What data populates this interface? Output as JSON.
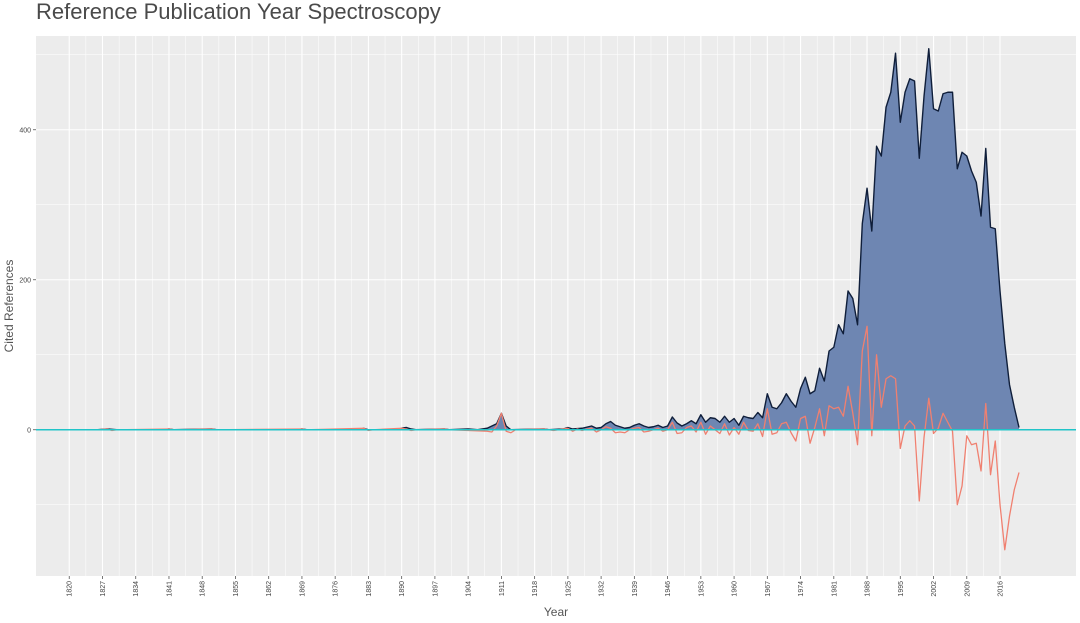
{
  "chart_data": {
    "type": "area",
    "title": "Reference Publication Year Spectroscopy",
    "xlabel": "Year",
    "ylabel": "Cited References",
    "xlim": [
      1813,
      2032
    ],
    "ylim": [
      -195,
      525
    ],
    "x_ticks": [
      1820,
      1827,
      1834,
      1841,
      1848,
      1855,
      1862,
      1869,
      1876,
      1883,
      1890,
      1897,
      1904,
      1911,
      1918,
      1925,
      1932,
      1939,
      1946,
      1953,
      1960,
      1967,
      1974,
      1981,
      1988,
      1995,
      2002,
      2009,
      2016
    ],
    "y_ticks": [
      0,
      200,
      400
    ],
    "grid": true,
    "legend": "none",
    "colors": {
      "area_fill": "#6e86b2",
      "area_line": "#0f1e3a",
      "deviation_line": "#f08070",
      "zero_line": "#20c4c8",
      "panel_bg": "#ececec",
      "grid": "#ffffff"
    },
    "series": [
      {
        "kind": "area",
        "points": [
          [
            1820,
            0
          ],
          [
            1826,
            0
          ],
          [
            1828,
            1
          ],
          [
            1830,
            0
          ],
          [
            1840,
            0
          ],
          [
            1841,
            1
          ],
          [
            1842,
            0
          ],
          [
            1850,
            1
          ],
          [
            1851,
            0
          ],
          [
            1868,
            0
          ],
          [
            1869,
            1
          ],
          [
            1870,
            0
          ],
          [
            1881,
            0
          ],
          [
            1882,
            2
          ],
          [
            1883,
            0
          ],
          [
            1889,
            0
          ],
          [
            1890,
            2
          ],
          [
            1891,
            3
          ],
          [
            1892,
            1
          ],
          [
            1893,
            0
          ],
          [
            1899,
            1
          ],
          [
            1900,
            0
          ],
          [
            1904,
            1
          ],
          [
            1906,
            0
          ],
          [
            1908,
            2
          ],
          [
            1910,
            8
          ],
          [
            1911,
            22
          ],
          [
            1912,
            5
          ],
          [
            1913,
            0
          ],
          [
            1920,
            1
          ],
          [
            1921,
            0
          ],
          [
            1924,
            1
          ],
          [
            1925,
            3
          ],
          [
            1926,
            1
          ],
          [
            1928,
            2
          ],
          [
            1930,
            5
          ],
          [
            1931,
            2
          ],
          [
            1932,
            3
          ],
          [
            1933,
            8
          ],
          [
            1934,
            11
          ],
          [
            1935,
            6
          ],
          [
            1936,
            4
          ],
          [
            1937,
            2
          ],
          [
            1938,
            3
          ],
          [
            1939,
            6
          ],
          [
            1940,
            8
          ],
          [
            1941,
            5
          ],
          [
            1942,
            3
          ],
          [
            1943,
            4
          ],
          [
            1944,
            6
          ],
          [
            1945,
            3
          ],
          [
            1946,
            5
          ],
          [
            1947,
            17
          ],
          [
            1948,
            9
          ],
          [
            1949,
            5
          ],
          [
            1950,
            8
          ],
          [
            1951,
            12
          ],
          [
            1952,
            8
          ],
          [
            1953,
            20
          ],
          [
            1954,
            10
          ],
          [
            1955,
            16
          ],
          [
            1956,
            15
          ],
          [
            1957,
            10
          ],
          [
            1958,
            18
          ],
          [
            1959,
            10
          ],
          [
            1960,
            15
          ],
          [
            1961,
            6
          ],
          [
            1962,
            18
          ],
          [
            1963,
            16
          ],
          [
            1964,
            15
          ],
          [
            1965,
            23
          ],
          [
            1966,
            16
          ],
          [
            1967,
            48
          ],
          [
            1968,
            30
          ],
          [
            1969,
            28
          ],
          [
            1970,
            36
          ],
          [
            1971,
            48
          ],
          [
            1972,
            38
          ],
          [
            1973,
            30
          ],
          [
            1974,
            55
          ],
          [
            1975,
            70
          ],
          [
            1976,
            48
          ],
          [
            1977,
            52
          ],
          [
            1978,
            82
          ],
          [
            1979,
            65
          ],
          [
            1980,
            105
          ],
          [
            1981,
            110
          ],
          [
            1982,
            140
          ],
          [
            1983,
            128
          ],
          [
            1984,
            185
          ],
          [
            1985,
            175
          ],
          [
            1986,
            140
          ],
          [
            1987,
            275
          ],
          [
            1988,
            322
          ],
          [
            1989,
            265
          ],
          [
            1990,
            378
          ],
          [
            1991,
            365
          ],
          [
            1992,
            430
          ],
          [
            1993,
            450
          ],
          [
            1994,
            502
          ],
          [
            1995,
            410
          ],
          [
            1996,
            450
          ],
          [
            1997,
            468
          ],
          [
            1998,
            465
          ],
          [
            1999,
            362
          ],
          [
            2000,
            445
          ],
          [
            2001,
            508
          ],
          [
            2002,
            428
          ],
          [
            2003,
            425
          ],
          [
            2004,
            448
          ],
          [
            2005,
            450
          ],
          [
            2006,
            450
          ],
          [
            2007,
            348
          ],
          [
            2008,
            370
          ],
          [
            2009,
            365
          ],
          [
            2010,
            345
          ],
          [
            2011,
            330
          ],
          [
            2012,
            285
          ],
          [
            2013,
            375
          ],
          [
            2014,
            270
          ],
          [
            2015,
            268
          ],
          [
            2016,
            185
          ],
          [
            2017,
            115
          ],
          [
            2018,
            60
          ],
          [
            2019,
            30
          ],
          [
            2020,
            3
          ]
        ]
      },
      {
        "kind": "line",
        "points": [
          [
            1820,
            0
          ],
          [
            1826,
            0
          ],
          [
            1828,
            1
          ],
          [
            1829,
            -1
          ],
          [
            1830,
            0
          ],
          [
            1841,
            1
          ],
          [
            1842,
            0
          ],
          [
            1850,
            1
          ],
          [
            1851,
            0
          ],
          [
            1869,
            1
          ],
          [
            1870,
            0
          ],
          [
            1882,
            2
          ],
          [
            1883,
            -1
          ],
          [
            1884,
            0
          ],
          [
            1890,
            2
          ],
          [
            1891,
            1
          ],
          [
            1892,
            -1
          ],
          [
            1893,
            0
          ],
          [
            1899,
            1
          ],
          [
            1900,
            0
          ],
          [
            1908,
            -2
          ],
          [
            1909,
            -3
          ],
          [
            1910,
            5
          ],
          [
            1911,
            22
          ],
          [
            1912,
            -2
          ],
          [
            1913,
            -4
          ],
          [
            1914,
            0
          ],
          [
            1920,
            1
          ],
          [
            1922,
            -1
          ],
          [
            1924,
            1
          ],
          [
            1925,
            2
          ],
          [
            1926,
            -2
          ],
          [
            1927,
            1
          ],
          [
            1928,
            -1
          ],
          [
            1929,
            1
          ],
          [
            1930,
            2
          ],
          [
            1931,
            -3
          ],
          [
            1932,
            0
          ],
          [
            1933,
            4
          ],
          [
            1934,
            2
          ],
          [
            1935,
            -4
          ],
          [
            1936,
            -3
          ],
          [
            1937,
            -4
          ],
          [
            1938,
            0
          ],
          [
            1939,
            2
          ],
          [
            1940,
            3
          ],
          [
            1941,
            -3
          ],
          [
            1942,
            -2
          ],
          [
            1943,
            0
          ],
          [
            1944,
            2
          ],
          [
            1945,
            -2
          ],
          [
            1946,
            0
          ],
          [
            1947,
            10
          ],
          [
            1948,
            -5
          ],
          [
            1949,
            -4
          ],
          [
            1950,
            3
          ],
          [
            1951,
            5
          ],
          [
            1952,
            -3
          ],
          [
            1953,
            10
          ],
          [
            1954,
            -6
          ],
          [
            1955,
            5
          ],
          [
            1956,
            0
          ],
          [
            1957,
            -5
          ],
          [
            1958,
            8
          ],
          [
            1959,
            -7
          ],
          [
            1960,
            3
          ],
          [
            1961,
            -6
          ],
          [
            1962,
            10
          ],
          [
            1963,
            -1
          ],
          [
            1964,
            -2
          ],
          [
            1965,
            8
          ],
          [
            1966,
            -9
          ],
          [
            1967,
            28
          ],
          [
            1968,
            -6
          ],
          [
            1969,
            -4
          ],
          [
            1970,
            8
          ],
          [
            1971,
            10
          ],
          [
            1972,
            -4
          ],
          [
            1973,
            -15
          ],
          [
            1974,
            15
          ],
          [
            1975,
            18
          ],
          [
            1976,
            -18
          ],
          [
            1977,
            3
          ],
          [
            1978,
            28
          ],
          [
            1979,
            -8
          ],
          [
            1980,
            32
          ],
          [
            1981,
            28
          ],
          [
            1982,
            30
          ],
          [
            1983,
            18
          ],
          [
            1984,
            58
          ],
          [
            1985,
            22
          ],
          [
            1986,
            -20
          ],
          [
            1987,
            105
          ],
          [
            1988,
            138
          ],
          [
            1989,
            -8
          ],
          [
            1990,
            100
          ],
          [
            1991,
            30
          ],
          [
            1992,
            68
          ],
          [
            1993,
            72
          ],
          [
            1994,
            68
          ],
          [
            1995,
            -25
          ],
          [
            1996,
            5
          ],
          [
            1997,
            12
          ],
          [
            1998,
            5
          ],
          [
            1999,
            -95
          ],
          [
            2000,
            -10
          ],
          [
            2001,
            42
          ],
          [
            2002,
            -5
          ],
          [
            2003,
            2
          ],
          [
            2004,
            22
          ],
          [
            2005,
            10
          ],
          [
            2006,
            -2
          ],
          [
            2007,
            -100
          ],
          [
            2008,
            -75
          ],
          [
            2009,
            -8
          ],
          [
            2010,
            -20
          ],
          [
            2011,
            -18
          ],
          [
            2012,
            -55
          ],
          [
            2013,
            35
          ],
          [
            2014,
            -60
          ],
          [
            2015,
            -15
          ],
          [
            2016,
            -100
          ],
          [
            2017,
            -160
          ],
          [
            2018,
            -115
          ],
          [
            2019,
            -80
          ],
          [
            2020,
            -57
          ]
        ]
      }
    ]
  }
}
